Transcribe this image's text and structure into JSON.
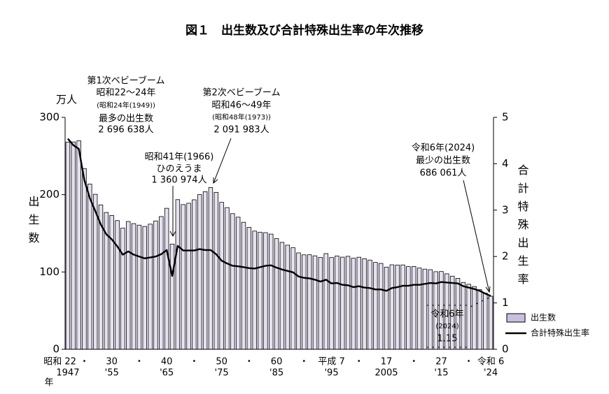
{
  "chart_data": {
    "type": "bar_line",
    "title": "図１　出生数及び合計特殊出生率の年次推移",
    "y_label": "出生数",
    "y_unit": "万人",
    "y2_label": "合計特殊出生率",
    "x_unit": "年",
    "categories": [
      "昭和 22",
      null,
      null,
      "・",
      null,
      null,
      null,
      null,
      "30",
      null,
      null,
      null,
      null,
      "・",
      null,
      null,
      null,
      null,
      "40",
      null,
      null,
      null,
      null,
      "・",
      null,
      null,
      null,
      null,
      "50",
      null,
      null,
      null,
      null,
      "・",
      null,
      null,
      null,
      null,
      "60",
      null,
      null,
      null,
      null,
      "・",
      null,
      null,
      null,
      null,
      "平成 7",
      null,
      null,
      null,
      null,
      "・",
      null,
      null,
      null,
      null,
      "17",
      null,
      null,
      null,
      null,
      "・",
      null,
      null,
      null,
      null,
      "27",
      null,
      null,
      null,
      null,
      "・",
      null,
      null,
      null,
      "令和 6"
    ],
    "categories_western": [
      "1947",
      null,
      null,
      null,
      null,
      null,
      null,
      null,
      "'55",
      null,
      null,
      null,
      null,
      null,
      null,
      null,
      null,
      null,
      "'65",
      null,
      null,
      null,
      null,
      null,
      null,
      null,
      null,
      null,
      "'75",
      null,
      null,
      null,
      null,
      null,
      null,
      null,
      null,
      null,
      "'85",
      null,
      null,
      null,
      null,
      null,
      null,
      null,
      null,
      null,
      "'95",
      null,
      null,
      null,
      null,
      null,
      null,
      null,
      null,
      null,
      "2005",
      null,
      null,
      null,
      null,
      null,
      null,
      null,
      null,
      null,
      "'15",
      null,
      null,
      null,
      null,
      null,
      null,
      null,
      null,
      "'24"
    ],
    "series": [
      {
        "name": "出生数",
        "color": "#e6e1f0",
        "values": [
          267.9,
          268.2,
          269.7,
          233.8,
          213.8,
          200.5,
          186.8,
          177.0,
          173.1,
          166.5,
          156.7,
          165.3,
          162.6,
          160.6,
          158.9,
          161.9,
          166.0,
          171.7,
          182.4,
          136.1,
          193.6,
          187.2,
          188.9,
          193.4,
          200.1,
          203.9,
          209.2,
          203.0,
          190.1,
          183.3,
          175.5,
          170.9,
          164.3,
          157.7,
          152.9,
          151.5,
          150.9,
          149.0,
          143.2,
          138.3,
          134.7,
          131.4,
          124.7,
          122.2,
          122.3,
          120.9,
          118.8,
          123.8,
          118.7,
          120.7,
          119.2,
          120.3,
          117.8,
          119.1,
          117.1,
          115.4,
          112.4,
          111.1,
          106.3,
          109.3,
          109.0,
          109.1,
          107.0,
          107.1,
          105.1,
          103.7,
          103.0,
          100.4,
          100.6,
          97.7,
          94.6,
          91.8,
          86.5,
          84.1,
          81.2,
          77.1,
          72.7,
          68.6
        ]
      },
      {
        "name": "合計特殊出生率",
        "color": "#000000",
        "axis": "y2",
        "values": [
          4.54,
          4.4,
          4.32,
          3.65,
          3.26,
          2.98,
          2.69,
          2.48,
          2.37,
          2.22,
          2.04,
          2.11,
          2.04,
          2.0,
          1.96,
          1.98,
          2.0,
          2.05,
          2.14,
          1.58,
          2.23,
          2.13,
          2.13,
          2.13,
          2.16,
          2.14,
          2.14,
          2.05,
          1.91,
          1.85,
          1.8,
          1.79,
          1.77,
          1.75,
          1.74,
          1.77,
          1.8,
          1.81,
          1.76,
          1.72,
          1.69,
          1.66,
          1.57,
          1.54,
          1.53,
          1.5,
          1.46,
          1.5,
          1.42,
          1.43,
          1.39,
          1.38,
          1.34,
          1.36,
          1.33,
          1.32,
          1.29,
          1.29,
          1.26,
          1.32,
          1.34,
          1.37,
          1.37,
          1.39,
          1.39,
          1.41,
          1.43,
          1.42,
          1.45,
          1.44,
          1.43,
          1.42,
          1.36,
          1.33,
          1.3,
          1.26,
          1.2,
          1.15
        ]
      }
    ],
    "ylim": [
      0,
      300
    ],
    "yticks": [
      0,
      100,
      200,
      300
    ],
    "y2lim": [
      0,
      5
    ],
    "y2ticks": [
      0,
      1,
      2,
      3,
      4,
      5
    ],
    "legend": "lower right",
    "annotations": [
      {
        "lines": [
          "第1次ベビーブーム",
          "昭和22〜24年",
          "(昭和24年(1949))",
          "最多の出生数",
          "2 696 638人"
        ]
      },
      {
        "lines": [
          "第2次ベビーブーム",
          "昭和46〜49年",
          "(昭和48年(1973))",
          "2 091 983人"
        ]
      },
      {
        "lines": [
          "昭和41年(1966)",
          "ひのえうま",
          "1 360 974人"
        ]
      },
      {
        "lines": [
          "令和6年(2024)",
          "最少の出生数",
          "686 061人"
        ]
      },
      {
        "lines": [
          "令和6年",
          "(2024)",
          "1.15"
        ]
      }
    ]
  }
}
